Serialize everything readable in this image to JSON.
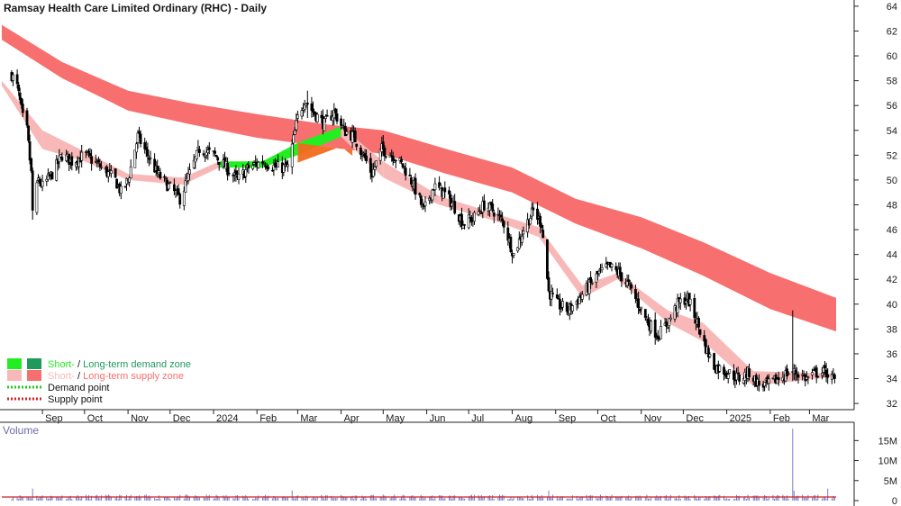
{
  "header": {
    "title": "Ramsay Health Care Limited Ordinary (RHC) - Daily"
  },
  "colors": {
    "long_supply": "#f86f6f",
    "short_supply": "#f9b8b8",
    "short_demand": "#22ee22",
    "long_demand": "#1f9a5a",
    "overlap": "#f26a1f",
    "candle": "#000000",
    "volume_bar": "#7a7ac8",
    "volume_avg": "#cc2222",
    "demand_point": "#22cc22",
    "supply_point": "#dd2222"
  },
  "legend": {
    "items": [
      {
        "icon": "short-long-demand-swatch",
        "short": "Short-",
        "long": "Long-term demand zone"
      },
      {
        "icon": "short-long-supply-swatch",
        "short": "Short-",
        "long": "Long-term supply zone"
      },
      {
        "icon": "demand-point-line",
        "label": "Demand point"
      },
      {
        "icon": "supply-point-line",
        "label": "Supply point"
      }
    ],
    "separator": " / ",
    "placement": "bottom-left"
  },
  "chart_data": {
    "type": "candlestick",
    "title": "Ramsay Health Care Limited Ordinary (RHC) - Daily",
    "x_labels": [
      "Sep",
      "Oct",
      "Nov",
      "Dec",
      "2024",
      "Feb",
      "Mar",
      "Apr",
      "May",
      "Jun",
      "Jul",
      "Aug",
      "Sep",
      "Oct",
      "Nov",
      "Dec",
      "2025",
      "Feb",
      "Mar"
    ],
    "price_axis": {
      "ticks": [
        32,
        34,
        36,
        38,
        40,
        42,
        44,
        46,
        48,
        50,
        52,
        54,
        56,
        58,
        60,
        62,
        64
      ],
      "range": [
        31.5,
        64.5
      ]
    },
    "close_series": [
      {
        "x": "2023-08-10",
        "y": 58.5
      },
      {
        "x": "2023-08-14",
        "y": 57.5
      },
      {
        "x": "2023-08-18",
        "y": 55
      },
      {
        "x": "2023-08-21",
        "y": 54
      },
      {
        "x": "2023-08-24",
        "y": 50.5
      },
      {
        "x": "2023-08-25",
        "y": 47.5
      },
      {
        "x": "2023-08-29",
        "y": 50
      },
      {
        "x": "2023-09-01",
        "y": 49.5
      },
      {
        "x": "2023-09-08",
        "y": 50.5
      },
      {
        "x": "2023-09-15",
        "y": 52
      },
      {
        "x": "2023-09-22",
        "y": 51.5
      },
      {
        "x": "2023-10-02",
        "y": 52
      },
      {
        "x": "2023-10-13",
        "y": 51
      },
      {
        "x": "2023-10-23",
        "y": 50
      },
      {
        "x": "2023-10-27",
        "y": 49
      },
      {
        "x": "2023-11-01",
        "y": 50
      },
      {
        "x": "2023-11-08",
        "y": 53.5
      },
      {
        "x": "2023-11-15",
        "y": 52
      },
      {
        "x": "2023-11-22",
        "y": 50.5
      },
      {
        "x": "2023-11-30",
        "y": 49.5
      },
      {
        "x": "2023-12-08",
        "y": 48.5
      },
      {
        "x": "2023-12-15",
        "y": 50.5
      },
      {
        "x": "2023-12-22",
        "y": 52.5
      },
      {
        "x": "2024-01-02",
        "y": 52
      },
      {
        "x": "2024-01-10",
        "y": 51
      },
      {
        "x": "2024-01-18",
        "y": 50
      },
      {
        "x": "2024-01-26",
        "y": 51
      },
      {
        "x": "2024-02-05",
        "y": 51.5
      },
      {
        "x": "2024-02-15",
        "y": 51
      },
      {
        "x": "2024-02-23",
        "y": 51
      },
      {
        "x": "2024-03-01",
        "y": 55
      },
      {
        "x": "2024-03-06",
        "y": 56.5
      },
      {
        "x": "2024-03-12",
        "y": 55.5
      },
      {
        "x": "2024-03-20",
        "y": 54.5
      },
      {
        "x": "2024-03-27",
        "y": 55.5
      },
      {
        "x": "2024-04-03",
        "y": 54
      },
      {
        "x": "2024-04-10",
        "y": 53.5
      },
      {
        "x": "2024-04-17",
        "y": 52
      },
      {
        "x": "2024-04-23",
        "y": 50.5
      },
      {
        "x": "2024-04-30",
        "y": 52.5
      },
      {
        "x": "2024-05-08",
        "y": 52
      },
      {
        "x": "2024-05-16",
        "y": 51
      },
      {
        "x": "2024-05-23",
        "y": 49.5
      },
      {
        "x": "2024-05-30",
        "y": 47.5
      },
      {
        "x": "2024-06-06",
        "y": 49.5
      },
      {
        "x": "2024-06-13",
        "y": 49
      },
      {
        "x": "2024-06-20",
        "y": 48
      },
      {
        "x": "2024-06-27",
        "y": 46.5
      },
      {
        "x": "2024-07-05",
        "y": 47
      },
      {
        "x": "2024-07-12",
        "y": 48
      },
      {
        "x": "2024-07-19",
        "y": 47.5
      },
      {
        "x": "2024-07-26",
        "y": 46.5
      },
      {
        "x": "2024-08-02",
        "y": 44
      },
      {
        "x": "2024-08-09",
        "y": 46
      },
      {
        "x": "2024-08-16",
        "y": 47.5
      },
      {
        "x": "2024-08-22",
        "y": 46.5
      },
      {
        "x": "2024-08-27",
        "y": 41
      },
      {
        "x": "2024-09-02",
        "y": 40
      },
      {
        "x": "2024-09-10",
        "y": 39.5
      },
      {
        "x": "2024-09-18",
        "y": 40.5
      },
      {
        "x": "2024-09-25",
        "y": 41.5
      },
      {
        "x": "2024-10-02",
        "y": 42.5
      },
      {
        "x": "2024-10-09",
        "y": 43
      },
      {
        "x": "2024-10-16",
        "y": 42.5
      },
      {
        "x": "2024-10-23",
        "y": 41.5
      },
      {
        "x": "2024-10-30",
        "y": 40
      },
      {
        "x": "2024-11-06",
        "y": 38.5
      },
      {
        "x": "2024-11-13",
        "y": 37.5
      },
      {
        "x": "2024-11-20",
        "y": 38.5
      },
      {
        "x": "2024-11-27",
        "y": 40
      },
      {
        "x": "2024-12-04",
        "y": 40.5
      },
      {
        "x": "2024-12-11",
        "y": 38.5
      },
      {
        "x": "2024-12-17",
        "y": 36.5
      },
      {
        "x": "2024-12-23",
        "y": 35
      },
      {
        "x": "2025-01-02",
        "y": 34.5
      },
      {
        "x": "2025-01-10",
        "y": 34
      },
      {
        "x": "2025-01-17",
        "y": 34.5
      },
      {
        "x": "2025-01-24",
        "y": 33.5
      },
      {
        "x": "2025-01-31",
        "y": 33.5
      },
      {
        "x": "2025-02-07",
        "y": 34
      },
      {
        "x": "2025-02-14",
        "y": 34.5
      },
      {
        "x": "2025-02-20",
        "y": 34.5
      },
      {
        "x": "2025-02-27",
        "y": 34
      },
      {
        "x": "2025-03-06",
        "y": 34.5
      },
      {
        "x": "2025-03-13",
        "y": 34.5
      },
      {
        "x": "2025-03-19",
        "y": 33.8
      }
    ],
    "long_term_supply_zone": [
      {
        "x": "2023-08-03",
        "upper": 62.5,
        "lower": 61.3
      },
      {
        "x": "2023-09-15",
        "upper": 59.5,
        "lower": 58.2
      },
      {
        "x": "2023-11-01",
        "upper": 57.2,
        "lower": 55.6
      },
      {
        "x": "2023-12-15",
        "upper": 56.2,
        "lower": 54.5
      },
      {
        "x": "2024-02-01",
        "upper": 55.3,
        "lower": 53.4
      },
      {
        "x": "2024-03-20",
        "upper": 54.5,
        "lower": 52.7
      },
      {
        "x": "2024-05-01",
        "upper": 54,
        "lower": 52.1
      },
      {
        "x": "2024-06-15",
        "upper": 52.5,
        "lower": 50.5
      },
      {
        "x": "2024-08-01",
        "upper": 51,
        "lower": 49
      },
      {
        "x": "2024-09-15",
        "upper": 48.5,
        "lower": 46.5
      },
      {
        "x": "2024-11-01",
        "upper": 47,
        "lower": 44.5
      },
      {
        "x": "2024-12-15",
        "upper": 45,
        "lower": 42.3
      },
      {
        "x": "2025-02-01",
        "upper": 42.5,
        "lower": 39.6
      },
      {
        "x": "2025-03-20",
        "upper": 40.5,
        "lower": 37.8
      }
    ],
    "short_term_zone": [
      {
        "x": "2023-08-03",
        "upper": 58,
        "lower": 57.6,
        "kind": "supply"
      },
      {
        "x": "2023-09-01",
        "upper": 54,
        "lower": 52.5,
        "kind": "supply"
      },
      {
        "x": "2023-10-01",
        "upper": 52.3,
        "lower": 51.5,
        "kind": "supply"
      },
      {
        "x": "2023-11-01",
        "upper": 50.5,
        "lower": 50,
        "kind": "supply"
      },
      {
        "x": "2023-12-10",
        "upper": 50.2,
        "lower": 49.6,
        "kind": "supply"
      },
      {
        "x": "2024-01-05",
        "upper": 51.5,
        "lower": 51,
        "kind": "demand"
      },
      {
        "x": "2024-02-05",
        "upper": 51.5,
        "lower": 51,
        "kind": "demand"
      },
      {
        "x": "2024-03-01",
        "upper": 53,
        "lower": 52,
        "kind": "demand"
      },
      {
        "x": "2024-04-01",
        "upper": 54.3,
        "lower": 53.5,
        "kind": "supply"
      },
      {
        "x": "2024-05-01",
        "upper": 51.5,
        "lower": 50.2,
        "kind": "supply"
      },
      {
        "x": "2024-06-10",
        "upper": 48.7,
        "lower": 48,
        "kind": "supply"
      },
      {
        "x": "2024-07-20",
        "upper": 47.3,
        "lower": 46.7,
        "kind": "supply"
      },
      {
        "x": "2024-08-20",
        "upper": 46.2,
        "lower": 45.4,
        "kind": "supply"
      },
      {
        "x": "2024-09-20",
        "upper": 41.5,
        "lower": 40.5,
        "kind": "supply"
      },
      {
        "x": "2024-10-15",
        "upper": 42.5,
        "lower": 42,
        "kind": "supply"
      },
      {
        "x": "2024-11-20",
        "upper": 39.5,
        "lower": 38.5,
        "kind": "supply"
      },
      {
        "x": "2024-12-15",
        "upper": 38.5,
        "lower": 37,
        "kind": "supply"
      },
      {
        "x": "2025-01-20",
        "upper": 34.6,
        "lower": 33.4,
        "kind": "supply"
      },
      {
        "x": "2025-03-20",
        "upper": 34.4,
        "lower": 34.2,
        "kind": "supply"
      }
    ],
    "notable_candles": [
      {
        "x": "2024-03-08",
        "high": 57.2,
        "low": 55
      },
      {
        "x": "2025-02-17",
        "high": 39.5,
        "low": 33.8
      },
      {
        "x": "2023-08-25",
        "high": 51,
        "low": 46.8
      }
    ],
    "volume": {
      "title": "Volume",
      "ticks": [
        {
          "value": 0,
          "label": "0"
        },
        {
          "value": 5000000,
          "label": "5M"
        },
        {
          "value": 10000000,
          "label": "10M"
        },
        {
          "value": 15000000,
          "label": "15M"
        }
      ],
      "range": [
        0,
        18000000
      ],
      "typical": 1000000,
      "average": 900000,
      "spikes": [
        {
          "x": "2023-08-25",
          "v": 3000000
        },
        {
          "x": "2024-02-26",
          "v": 2500000
        },
        {
          "x": "2024-08-27",
          "v": 2500000
        },
        {
          "x": "2025-02-17",
          "v": 18000000
        },
        {
          "x": "2025-02-18",
          "v": 2500000
        },
        {
          "x": "2025-03-14",
          "v": 3000000
        }
      ]
    },
    "grid": false
  }
}
